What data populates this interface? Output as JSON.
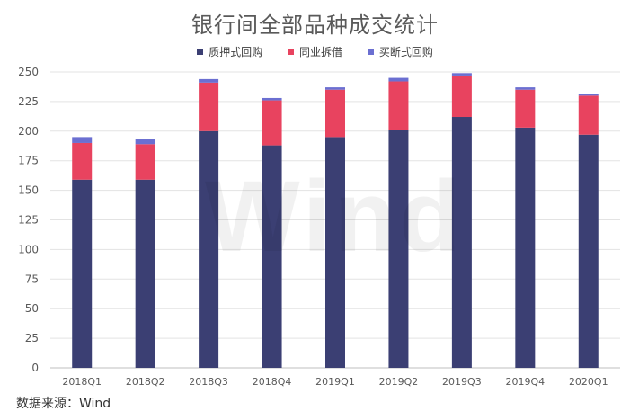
{
  "chart_data": {
    "type": "bar",
    "stacked": true,
    "title": "银行间全部品种成交统计",
    "categories": [
      "2018Q1",
      "2018Q2",
      "2018Q3",
      "2018Q4",
      "2019Q1",
      "2019Q2",
      "2019Q3",
      "2019Q4",
      "2020Q1"
    ],
    "series": [
      {
        "name": "质押式回购",
        "color": "#3b3f73",
        "values": [
          159,
          159,
          200,
          188,
          195,
          201,
          212,
          203,
          197
        ]
      },
      {
        "name": "同业拆借",
        "color": "#e8435f",
        "values": [
          31,
          30,
          41,
          38,
          40,
          41,
          35,
          32,
          33
        ]
      },
      {
        "name": "买断式回购",
        "color": "#6b6fd1",
        "values": [
          5,
          4,
          3,
          2,
          2,
          3,
          2,
          2,
          1
        ]
      }
    ],
    "ylim": [
      0,
      250
    ],
    "yticks": [
      0,
      25,
      50,
      75,
      100,
      125,
      150,
      175,
      200,
      225,
      250
    ],
    "grid": true,
    "legend_position": "top-center"
  },
  "source": "数据来源：Wind",
  "watermark": "Wind"
}
